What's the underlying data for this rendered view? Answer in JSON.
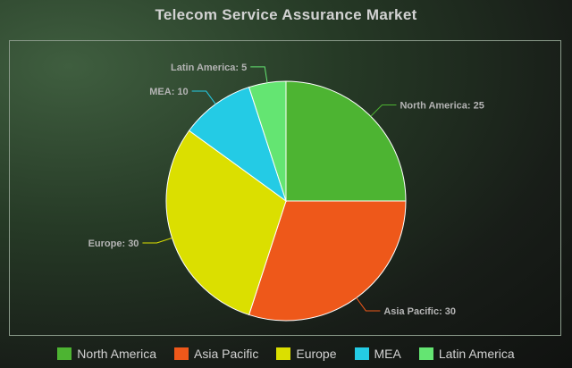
{
  "chart_data": {
    "type": "pie",
    "title": "Telecom Service Assurance Market",
    "categories": [
      "North America",
      "Asia Pacific",
      "Europe",
      "MEA",
      "Latin America"
    ],
    "values": [
      25,
      30,
      30,
      10,
      5
    ],
    "colors": [
      "#4db432",
      "#ee581a",
      "#dbdf00",
      "#24cbe5",
      "#64e572"
    ],
    "data_labels": [
      "North America: 25",
      "Asia Pacific: 30",
      "Europe: 30",
      "MEA: 10",
      "Latin America: 5"
    ],
    "legend_position": "bottom"
  }
}
